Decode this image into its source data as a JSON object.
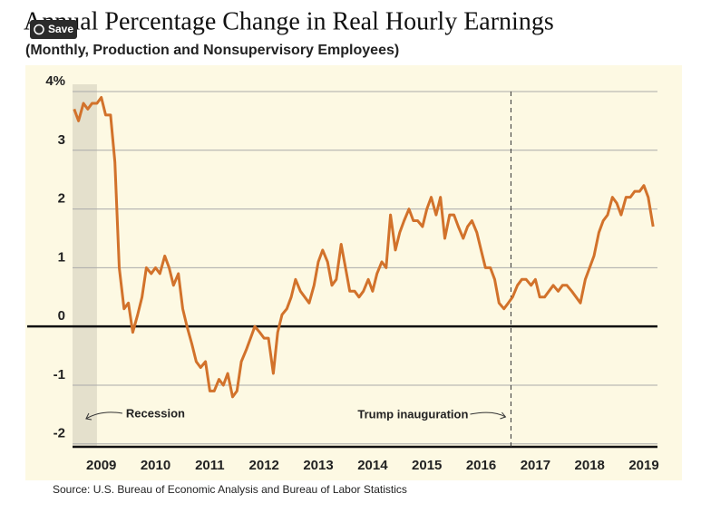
{
  "save_button": "Save",
  "chart_data": {
    "type": "line",
    "title": "Annual Percentage Change in Real Hourly Earnings",
    "subtitle": "(Monthly, Production and Nonsupervisory Employees)",
    "source": "Source: U.S. Bureau of Economic Analysis and Bureau of Labor Statistics",
    "xlim": [
      2008.97,
      2019.75
    ],
    "ylim": [
      -2.05,
      4
    ],
    "xticks": [
      {
        "value": 2009.5,
        "label": "2009"
      },
      {
        "value": 2010.5,
        "label": "2010"
      },
      {
        "value": 2011.5,
        "label": "2011"
      },
      {
        "value": 2012.5,
        "label": "2012"
      },
      {
        "value": 2013.5,
        "label": "2013"
      },
      {
        "value": 2014.5,
        "label": "2014"
      },
      {
        "value": 2015.5,
        "label": "2015"
      },
      {
        "value": 2016.5,
        "label": "2016"
      },
      {
        "value": 2017.5,
        "label": "2017"
      },
      {
        "value": 2018.5,
        "label": "2018"
      },
      {
        "value": 2019.5,
        "label": "2019"
      }
    ],
    "yticks": [
      {
        "value": 4,
        "label": "4%"
      },
      3,
      2,
      1,
      0,
      -1,
      -2
    ],
    "grid": true,
    "recession": {
      "label": "Recession",
      "end": 2009.42
    },
    "events": [
      {
        "label": "Trump inauguration",
        "x": 2017.05
      }
    ],
    "x": [
      2009,
      2009.08,
      2009.17,
      2009.25,
      2009.33,
      2009.42,
      2009.5,
      2009.58,
      2009.67,
      2009.75,
      2009.83,
      2009.92,
      2010,
      2010.08,
      2010.17,
      2010.25,
      2010.33,
      2010.42,
      2010.5,
      2010.58,
      2010.67,
      2010.75,
      2010.83,
      2010.92,
      2011,
      2011.08,
      2011.17,
      2011.25,
      2011.33,
      2011.42,
      2011.5,
      2011.58,
      2011.67,
      2011.75,
      2011.83,
      2011.92,
      2012,
      2012.08,
      2012.17,
      2012.25,
      2012.33,
      2012.42,
      2012.5,
      2012.58,
      2012.67,
      2012.75,
      2012.83,
      2012.92,
      2013,
      2013.08,
      2013.17,
      2013.25,
      2013.33,
      2013.42,
      2013.5,
      2013.58,
      2013.67,
      2013.75,
      2013.83,
      2013.92,
      2014,
      2014.08,
      2014.17,
      2014.25,
      2014.33,
      2014.42,
      2014.5,
      2014.58,
      2014.67,
      2014.75,
      2014.83,
      2014.92,
      2015,
      2015.08,
      2015.17,
      2015.25,
      2015.33,
      2015.42,
      2015.5,
      2015.58,
      2015.67,
      2015.75,
      2015.83,
      2015.92,
      2016,
      2016.08,
      2016.17,
      2016.25,
      2016.33,
      2016.42,
      2016.5,
      2016.58,
      2016.67,
      2016.75,
      2016.83,
      2016.92,
      2017,
      2017.08,
      2017.17,
      2017.25,
      2017.33,
      2017.42,
      2017.5,
      2017.58,
      2017.67,
      2017.75,
      2017.83,
      2017.92,
      2018,
      2018.08,
      2018.17,
      2018.25,
      2018.33,
      2018.42,
      2018.5,
      2018.58,
      2018.67,
      2018.75,
      2018.83,
      2018.92,
      2019,
      2019.08,
      2019.17,
      2019.25,
      2019.33,
      2019.42,
      2019.5,
      2019.58,
      2019.67
    ],
    "series": [
      {
        "name": "Real hourly earnings",
        "color": "#d2722b",
        "values": [
          3.7,
          3.5,
          3.8,
          3.7,
          3.8,
          3.8,
          3.9,
          3.6,
          3.6,
          2.8,
          1.0,
          0.3,
          0.4,
          -0.1,
          0.2,
          0.5,
          1.0,
          0.9,
          1.0,
          0.9,
          1.2,
          1.0,
          0.7,
          0.9,
          0.3,
          0.0,
          -0.3,
          -0.6,
          -0.7,
          -0.6,
          -1.1,
          -1.1,
          -0.9,
          -1.0,
          -0.8,
          -1.2,
          -1.1,
          -0.6,
          -0.4,
          -0.2,
          0.0,
          -0.1,
          -0.2,
          -0.2,
          -0.8,
          -0.1,
          0.2,
          0.3,
          0.5,
          0.8,
          0.6,
          0.5,
          0.4,
          0.7,
          1.1,
          1.3,
          1.1,
          0.7,
          0.8,
          1.4,
          1.0,
          0.6,
          0.6,
          0.5,
          0.6,
          0.8,
          0.6,
          0.9,
          1.1,
          1.0,
          1.9,
          1.3,
          1.6,
          1.8,
          2.0,
          1.8,
          1.8,
          1.7,
          2.0,
          2.2,
          1.9,
          2.2,
          1.5,
          1.9,
          1.9,
          1.7,
          1.5,
          1.7,
          1.8,
          1.6,
          1.3,
          1.0,
          1.0,
          0.8,
          0.4,
          0.3,
          0.4,
          0.5,
          0.7,
          0.8,
          0.8,
          0.7,
          0.8,
          0.5,
          0.5,
          0.6,
          0.7,
          0.6,
          0.7,
          0.7,
          0.6,
          0.5,
          0.4,
          0.8,
          1.0,
          1.2,
          1.6,
          1.8,
          1.9,
          2.2,
          2.1,
          1.9,
          2.2,
          2.2,
          2.3,
          2.3,
          2.4,
          2.2,
          1.7
        ]
      }
    ]
  }
}
